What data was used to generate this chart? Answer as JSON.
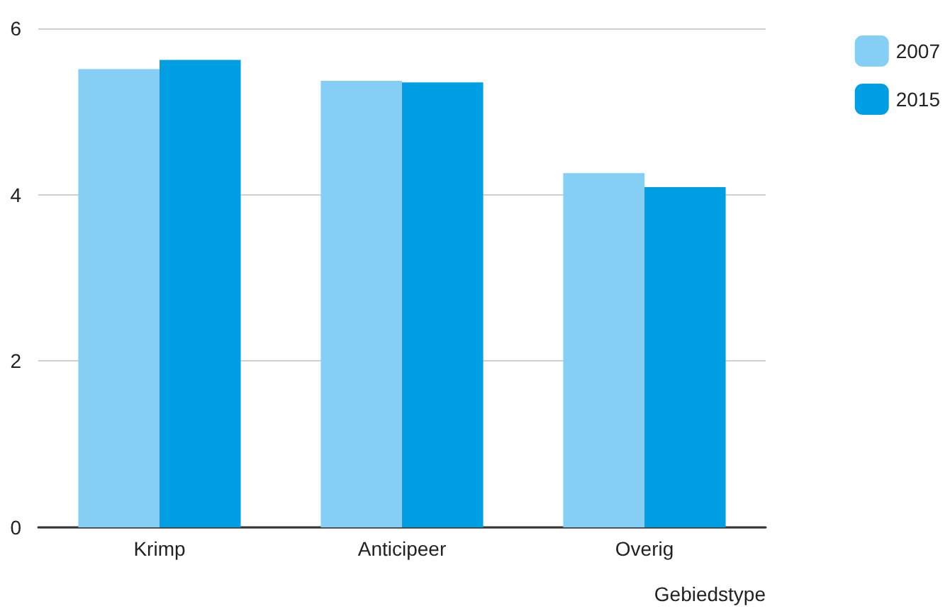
{
  "chart_data": {
    "type": "bar",
    "xlabel": "Gebiedstype",
    "categories": [
      "Krimp",
      "Anticipeer",
      "Overig"
    ],
    "series": [
      {
        "name": "2007",
        "color": "#85cef4",
        "values": [
          5.51,
          5.37,
          4.26
        ]
      },
      {
        "name": "2015",
        "color": "#009fe3",
        "values": [
          5.62,
          5.35,
          4.09
        ]
      }
    ],
    "ylim": [
      0,
      6
    ],
    "yticks": [
      0,
      2,
      4,
      6
    ],
    "grid": "y",
    "legend": "top right"
  }
}
